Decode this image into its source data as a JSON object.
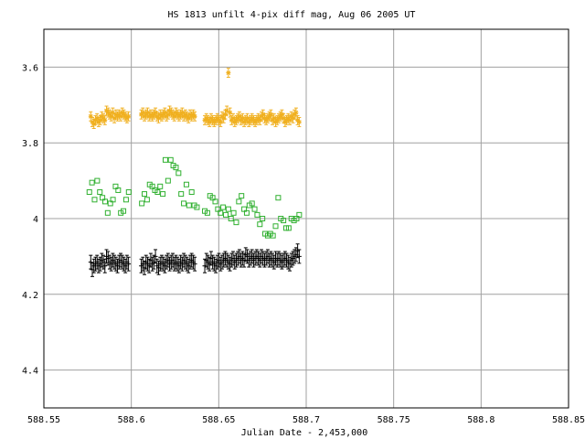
{
  "chart_data": {
    "type": "scatter",
    "title": "HS 1813 unfilt 4-pix diff mag, Aug 06 2005 UT",
    "xlabel": "Julian Date - 2,453,000",
    "ylabel": "",
    "xlim": [
      588.55,
      588.85
    ],
    "ylim": [
      4.5,
      3.5
    ],
    "y_inverted": true,
    "grid": true,
    "xticks": [
      588.55,
      588.6,
      588.65,
      588.7,
      588.75,
      588.8,
      588.85
    ],
    "xtick_labels": [
      "588.55",
      "588.6",
      "588.65",
      "588.7",
      "588.75",
      "588.8",
      "588.85"
    ],
    "yticks": [
      3.6,
      3.8,
      4.0,
      4.2,
      4.4
    ],
    "ytick_labels": [
      "3.6",
      "3.8",
      "4",
      "4.2",
      "4.4"
    ],
    "series": [
      {
        "color": "#f0b020",
        "marker": "star",
        "errorbar": 0.012,
        "x": [
          588.5768,
          588.5777,
          588.5786,
          588.5795,
          588.5804,
          588.5813,
          588.5822,
          588.5831,
          588.584,
          588.5849,
          588.5858,
          588.5867,
          588.5876,
          588.5885,
          588.5894,
          588.5903,
          588.5912,
          588.5921,
          588.593,
          588.5939,
          588.5948,
          588.5957,
          588.5966,
          588.5975,
          588.5984,
          588.6057,
          588.6066,
          588.6075,
          588.6084,
          588.6093,
          588.6102,
          588.6111,
          588.612,
          588.6129,
          588.6138,
          588.6147,
          588.6156,
          588.6165,
          588.6174,
          588.6183,
          588.6192,
          588.6201,
          588.621,
          588.6219,
          588.6228,
          588.6237,
          588.6246,
          588.6255,
          588.6264,
          588.6273,
          588.6282,
          588.6291,
          588.63,
          588.6309,
          588.6318,
          588.6327,
          588.6336,
          588.6345,
          588.6354,
          588.6363,
          588.642,
          588.6429,
          588.6438,
          588.6447,
          588.6456,
          588.6465,
          588.6474,
          588.6483,
          588.6492,
          588.6501,
          588.651,
          588.6519,
          588.6528,
          588.6537,
          588.6546,
          588.6555,
          588.6564,
          588.6573,
          588.6582,
          588.6591,
          588.66,
          588.6609,
          588.6618,
          588.6627,
          588.6636,
          588.6645,
          588.6654,
          588.6663,
          588.6672,
          588.6681,
          588.669,
          588.6699,
          588.6708,
          588.6717,
          588.6726,
          588.6735,
          588.6744,
          588.6753,
          588.6762,
          588.6771,
          588.678,
          588.6789,
          588.6798,
          588.6807,
          588.6816,
          588.6825,
          588.6834,
          588.6843,
          588.6852,
          588.6861,
          588.687,
          588.6879,
          588.6888,
          588.6897,
          588.6906,
          588.6915,
          588.6924,
          588.6933,
          588.6942,
          588.6951,
          588.696
        ],
        "y": [
          3.73,
          3.745,
          3.75,
          3.74,
          3.735,
          3.745,
          3.74,
          3.73,
          3.735,
          3.74,
          3.715,
          3.72,
          3.725,
          3.73,
          3.72,
          3.735,
          3.725,
          3.73,
          3.725,
          3.73,
          3.72,
          3.725,
          3.73,
          3.735,
          3.73,
          3.725,
          3.72,
          3.73,
          3.725,
          3.72,
          3.73,
          3.725,
          3.73,
          3.725,
          3.72,
          3.73,
          3.735,
          3.725,
          3.73,
          3.725,
          3.72,
          3.73,
          3.725,
          3.715,
          3.72,
          3.725,
          3.73,
          3.72,
          3.725,
          3.73,
          3.725,
          3.72,
          3.73,
          3.725,
          3.73,
          3.735,
          3.725,
          3.73,
          3.725,
          3.73,
          3.74,
          3.735,
          3.74,
          3.745,
          3.735,
          3.74,
          3.745,
          3.74,
          3.735,
          3.74,
          3.745,
          3.73,
          3.735,
          3.725,
          3.715,
          3.615,
          3.72,
          3.74,
          3.735,
          3.745,
          3.74,
          3.735,
          3.73,
          3.74,
          3.735,
          3.745,
          3.74,
          3.735,
          3.745,
          3.74,
          3.735,
          3.74,
          3.745,
          3.74,
          3.735,
          3.74,
          3.73,
          3.725,
          3.735,
          3.74,
          3.735,
          3.73,
          3.725,
          3.74,
          3.735,
          3.745,
          3.74,
          3.735,
          3.73,
          3.725,
          3.735,
          3.745,
          3.74,
          3.735,
          3.74,
          3.73,
          3.735,
          3.725,
          3.72,
          3.74,
          3.745
        ]
      },
      {
        "color": "#30b030",
        "marker": "square",
        "errorbar": 0,
        "x": [
          588.576,
          588.5775,
          588.579,
          588.5805,
          588.582,
          588.5835,
          588.585,
          588.5865,
          588.588,
          588.5895,
          588.591,
          588.5925,
          588.594,
          588.5955,
          588.597,
          588.5985,
          588.606,
          588.6075,
          588.609,
          588.6105,
          588.612,
          588.6135,
          588.615,
          588.6165,
          588.618,
          588.6195,
          588.621,
          588.6225,
          588.624,
          588.6255,
          588.627,
          588.6285,
          588.63,
          588.6315,
          588.633,
          588.6345,
          588.636,
          588.6375,
          588.642,
          588.6435,
          588.645,
          588.6465,
          588.648,
          588.6495,
          588.651,
          588.6525,
          588.654,
          588.6555,
          588.657,
          588.6585,
          588.66,
          588.6615,
          588.663,
          588.6645,
          588.666,
          588.6675,
          588.669,
          588.6705,
          588.672,
          588.6735,
          588.675,
          588.6765,
          588.678,
          588.6795,
          588.681,
          588.6825,
          588.684,
          588.6855,
          588.687,
          588.6885,
          588.69,
          588.6915,
          588.693,
          588.6945,
          588.696
        ],
        "y": [
          3.93,
          3.905,
          3.95,
          3.9,
          3.93,
          3.945,
          3.955,
          3.985,
          3.96,
          3.95,
          3.915,
          3.925,
          3.985,
          3.98,
          3.95,
          3.93,
          3.96,
          3.935,
          3.95,
          3.91,
          3.915,
          3.925,
          3.93,
          3.915,
          3.935,
          3.845,
          3.9,
          3.845,
          3.86,
          3.865,
          3.88,
          3.935,
          3.96,
          3.91,
          3.965,
          3.93,
          3.965,
          3.97,
          3.98,
          3.985,
          3.94,
          3.945,
          3.955,
          3.975,
          3.985,
          3.97,
          3.99,
          3.975,
          4.0,
          3.985,
          4.01,
          3.955,
          3.94,
          3.975,
          3.985,
          3.965,
          3.96,
          3.975,
          3.99,
          4.015,
          4.0,
          4.04,
          4.045,
          4.04,
          4.045,
          4.02,
          3.945,
          4.0,
          4.005,
          4.025,
          4.025,
          4.0,
          4.005,
          4.0,
          3.99
        ]
      },
      {
        "color": "#000000",
        "marker": "plus",
        "errorbar": 0.018,
        "x": [
          588.5768,
          588.5777,
          588.5786,
          588.5795,
          588.5804,
          588.5813,
          588.5822,
          588.5831,
          588.584,
          588.5849,
          588.5858,
          588.5867,
          588.5876,
          588.5885,
          588.5894,
          588.5903,
          588.5912,
          588.5921,
          588.593,
          588.5939,
          588.5948,
          588.5957,
          588.5966,
          588.5975,
          588.5984,
          588.6057,
          588.6066,
          588.6075,
          588.6084,
          588.6093,
          588.6102,
          588.6111,
          588.612,
          588.6129,
          588.6138,
          588.6147,
          588.6156,
          588.6165,
          588.6174,
          588.6183,
          588.6192,
          588.6201,
          588.621,
          588.6219,
          588.6228,
          588.6237,
          588.6246,
          588.6255,
          588.6264,
          588.6273,
          588.6282,
          588.6291,
          588.63,
          588.6309,
          588.6318,
          588.6327,
          588.6336,
          588.6345,
          588.6354,
          588.6363,
          588.642,
          588.6429,
          588.6438,
          588.6447,
          588.6456,
          588.6465,
          588.6474,
          588.6483,
          588.6492,
          588.6501,
          588.651,
          588.6519,
          588.6528,
          588.6537,
          588.6546,
          588.6555,
          588.6564,
          588.6573,
          588.6582,
          588.6591,
          588.66,
          588.6609,
          588.6618,
          588.6627,
          588.6636,
          588.6645,
          588.6654,
          588.6663,
          588.6672,
          588.6681,
          588.669,
          588.6699,
          588.6708,
          588.6717,
          588.6726,
          588.6735,
          588.6744,
          588.6753,
          588.6762,
          588.6771,
          588.678,
          588.6789,
          588.6798,
          588.6807,
          588.6816,
          588.6825,
          588.6834,
          588.6843,
          588.6852,
          588.6861,
          588.687,
          588.6879,
          588.6888,
          588.6897,
          588.6906,
          588.6915,
          588.6924,
          588.6933,
          588.6942,
          588.6951,
          588.696
        ],
        "y": [
          4.115,
          4.135,
          4.125,
          4.12,
          4.115,
          4.125,
          4.12,
          4.11,
          4.115,
          4.125,
          4.1,
          4.105,
          4.115,
          4.12,
          4.11,
          4.115,
          4.12,
          4.125,
          4.115,
          4.11,
          4.115,
          4.12,
          4.125,
          4.115,
          4.12,
          4.125,
          4.12,
          4.13,
          4.115,
          4.12,
          4.125,
          4.11,
          4.12,
          4.115,
          4.1,
          4.125,
          4.13,
          4.12,
          4.115,
          4.12,
          4.125,
          4.115,
          4.11,
          4.12,
          4.115,
          4.11,
          4.12,
          4.115,
          4.12,
          4.125,
          4.115,
          4.12,
          4.11,
          4.115,
          4.12,
          4.125,
          4.115,
          4.11,
          4.115,
          4.12,
          4.125,
          4.11,
          4.115,
          4.12,
          4.105,
          4.115,
          4.12,
          4.125,
          4.115,
          4.11,
          4.12,
          4.115,
          4.11,
          4.105,
          4.11,
          4.115,
          4.12,
          4.11,
          4.105,
          4.115,
          4.11,
          4.105,
          4.1,
          4.11,
          4.105,
          4.11,
          4.095,
          4.1,
          4.11,
          4.105,
          4.1,
          4.11,
          4.105,
          4.1,
          4.105,
          4.11,
          4.1,
          4.105,
          4.11,
          4.105,
          4.1,
          4.11,
          4.105,
          4.11,
          4.115,
          4.105,
          4.11,
          4.105,
          4.11,
          4.115,
          4.11,
          4.105,
          4.11,
          4.115,
          4.12,
          4.11,
          4.105,
          4.1,
          4.095,
          4.085,
          4.1
        ]
      }
    ]
  }
}
